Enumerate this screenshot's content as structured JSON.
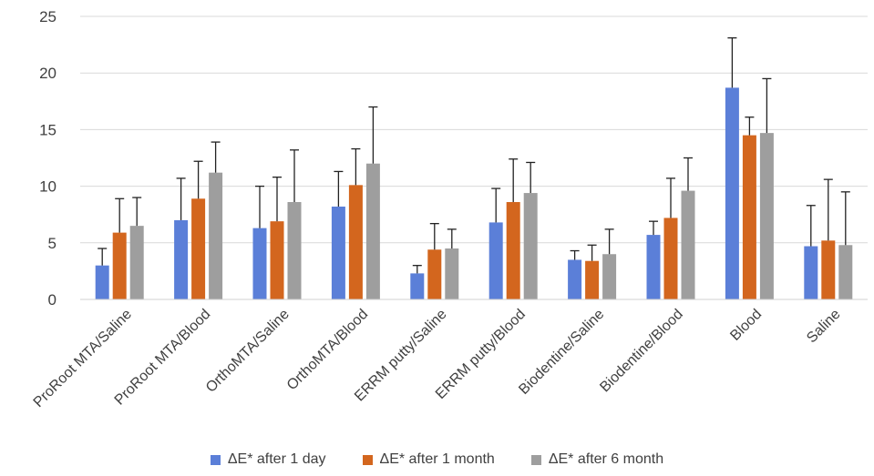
{
  "chart_data": {
    "type": "bar",
    "categories": [
      "ProRoot MTA/Saline",
      "ProRoot MTA/Blood",
      "OrthoMTA/Saline",
      "OrthoMTA/Blood",
      "ERRM putty/Saline",
      "ERRM putty/Blood",
      "Biodentine/Saline",
      "Biodentine/Blood",
      "Blood",
      "Saline"
    ],
    "series": [
      {
        "name": "ΔE* after 1 day",
        "color": "#5B7FD8",
        "values": [
          3.0,
          7.0,
          6.3,
          8.2,
          2.3,
          6.8,
          3.5,
          5.7,
          18.7,
          4.7
        ],
        "errors": [
          1.5,
          3.7,
          3.7,
          3.1,
          0.7,
          3.0,
          0.8,
          1.2,
          4.4,
          3.6
        ]
      },
      {
        "name": "ΔE* after 1 month",
        "color": "#D3661E",
        "values": [
          5.9,
          8.9,
          6.9,
          10.1,
          4.4,
          8.6,
          3.4,
          7.2,
          14.5,
          5.2
        ],
        "errors": [
          3.0,
          3.3,
          3.9,
          3.2,
          2.3,
          3.8,
          1.4,
          3.5,
          1.6,
          5.4
        ]
      },
      {
        "name": "ΔE* after 6 month",
        "color": "#9E9E9E",
        "values": [
          6.5,
          11.2,
          8.6,
          12.0,
          4.5,
          9.4,
          4.0,
          9.6,
          14.7,
          4.8
        ],
        "errors": [
          2.5,
          2.7,
          4.6,
          5.0,
          1.7,
          2.7,
          2.2,
          2.9,
          4.8,
          4.7
        ]
      }
    ],
    "yticks": [
      "0",
      "5",
      "10",
      "15",
      "20",
      "25"
    ],
    "ylim": [
      0,
      25
    ],
    "grid": true,
    "legend_position": "bottom"
  }
}
